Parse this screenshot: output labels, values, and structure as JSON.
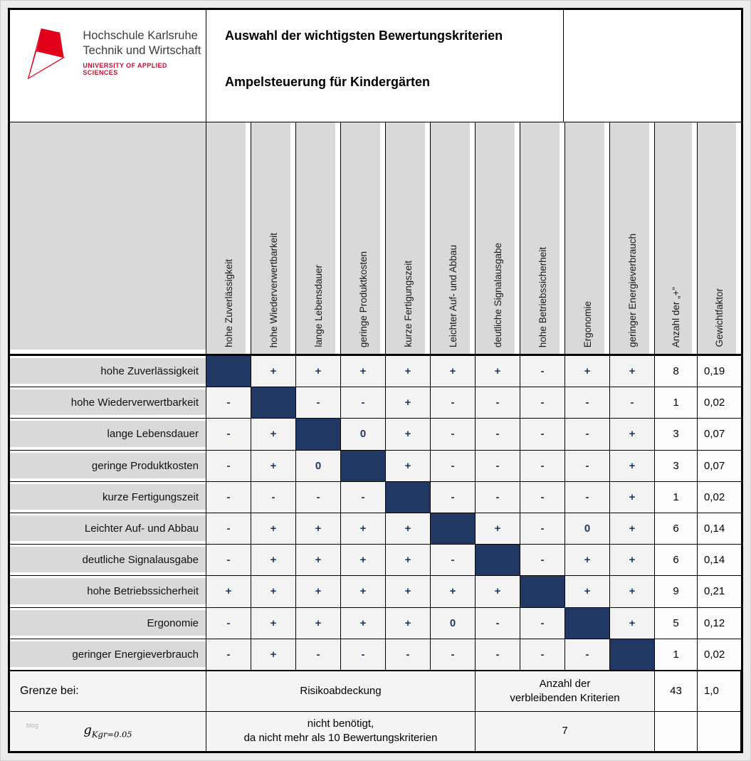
{
  "header": {
    "logo": {
      "name_line1": "Hochschule Karlsruhe",
      "name_line2": "Technik und Wirtschaft",
      "subtitle": "UNIVERSITY OF APPLIED SCIENCES"
    },
    "title_line1": "Auswahl der wichtigsten Bewertungskriterien",
    "title_line2": "Ampelsteuerung für Kindergärten"
  },
  "matrix": {
    "criteria": [
      "hohe Zuverlässigkeit",
      "hohe Wiederverwertbarkeit",
      "lange Lebensdauer",
      "geringe Produktkosten",
      "kurze Fertigungszeit",
      "Leichter Auf- und Abbau",
      "deutliche Signalausgabe",
      "hohe Betriebssicherheit",
      "Ergonomie",
      "geringer Energieverbrauch"
    ],
    "extra_columns": [
      "Anzahl  der „+“",
      "Gewichtfaktor"
    ],
    "rows": [
      {
        "label": "hohe Zuverlässigkeit",
        "cells": [
          null,
          "+",
          "+",
          "+",
          "+",
          "+",
          "+",
          "-",
          "+",
          "+"
        ],
        "anzahl": "8",
        "gewicht": "0,19"
      },
      {
        "label": "hohe Wiederverwertbarkeit",
        "cells": [
          "-",
          null,
          "-",
          "-",
          "+",
          "-",
          "-",
          "-",
          "-",
          "-"
        ],
        "anzahl": "1",
        "gewicht": "0,02"
      },
      {
        "label": "lange Lebensdauer",
        "cells": [
          "-",
          "+",
          null,
          "0",
          "+",
          "-",
          "-",
          "-",
          "-",
          "+"
        ],
        "anzahl": "3",
        "gewicht": "0,07"
      },
      {
        "label": "geringe Produktkosten",
        "cells": [
          "-",
          "+",
          "0",
          null,
          "+",
          "-",
          "-",
          "-",
          "-",
          "+"
        ],
        "anzahl": "3",
        "gewicht": "0,07"
      },
      {
        "label": "kurze Fertigungszeit",
        "cells": [
          "-",
          "-",
          "-",
          "-",
          null,
          "-",
          "-",
          "-",
          "-",
          "+"
        ],
        "anzahl": "1",
        "gewicht": "0,02"
      },
      {
        "label": "Leichter Auf- und Abbau",
        "cells": [
          "-",
          "+",
          "+",
          "+",
          "+",
          null,
          "+",
          "-",
          "0",
          "+"
        ],
        "anzahl": "6",
        "gewicht": "0,14"
      },
      {
        "label": "deutliche Signalausgabe",
        "cells": [
          "-",
          "+",
          "+",
          "+",
          "+",
          "-",
          null,
          "-",
          "+",
          "+"
        ],
        "anzahl": "6",
        "gewicht": "0,14"
      },
      {
        "label": "hohe Betriebssicherheit",
        "cells": [
          "+",
          "+",
          "+",
          "+",
          "+",
          "+",
          "+",
          null,
          "+",
          "+"
        ],
        "anzahl": "9",
        "gewicht": "0,21"
      },
      {
        "label": "Ergonomie",
        "cells": [
          "-",
          "+",
          "+",
          "+",
          "+",
          "0",
          "-",
          "-",
          null,
          "+"
        ],
        "anzahl": "5",
        "gewicht": "0,12"
      },
      {
        "label": "geringer Energieverbrauch",
        "cells": [
          "-",
          "+",
          "-",
          "-",
          "-",
          "-",
          "-",
          "-",
          "-",
          null
        ],
        "anzahl": "1",
        "gewicht": "0,02"
      }
    ],
    "colors": {
      "diagonal": "#1f3864",
      "value_text": "#1f3864",
      "header_fill": "#d9d9d9",
      "brand_red": "#e2001a"
    }
  },
  "footer": {
    "grenze_label": "Grenze bei:",
    "risikoabdeckung": "Risikoabdeckung",
    "verbleibend_label": "Anzahl der\nverbleibenden Kriterien",
    "total_anzahl": "43",
    "total_gewicht": "1,0",
    "g_base": "g",
    "g_sub": "Kgr=0.05",
    "nicht_benoetigt": "nicht benötigt,\nda nicht mehr als 10 Bewertungskriterien",
    "verbleibend_value": "7",
    "watermark": "blog"
  }
}
